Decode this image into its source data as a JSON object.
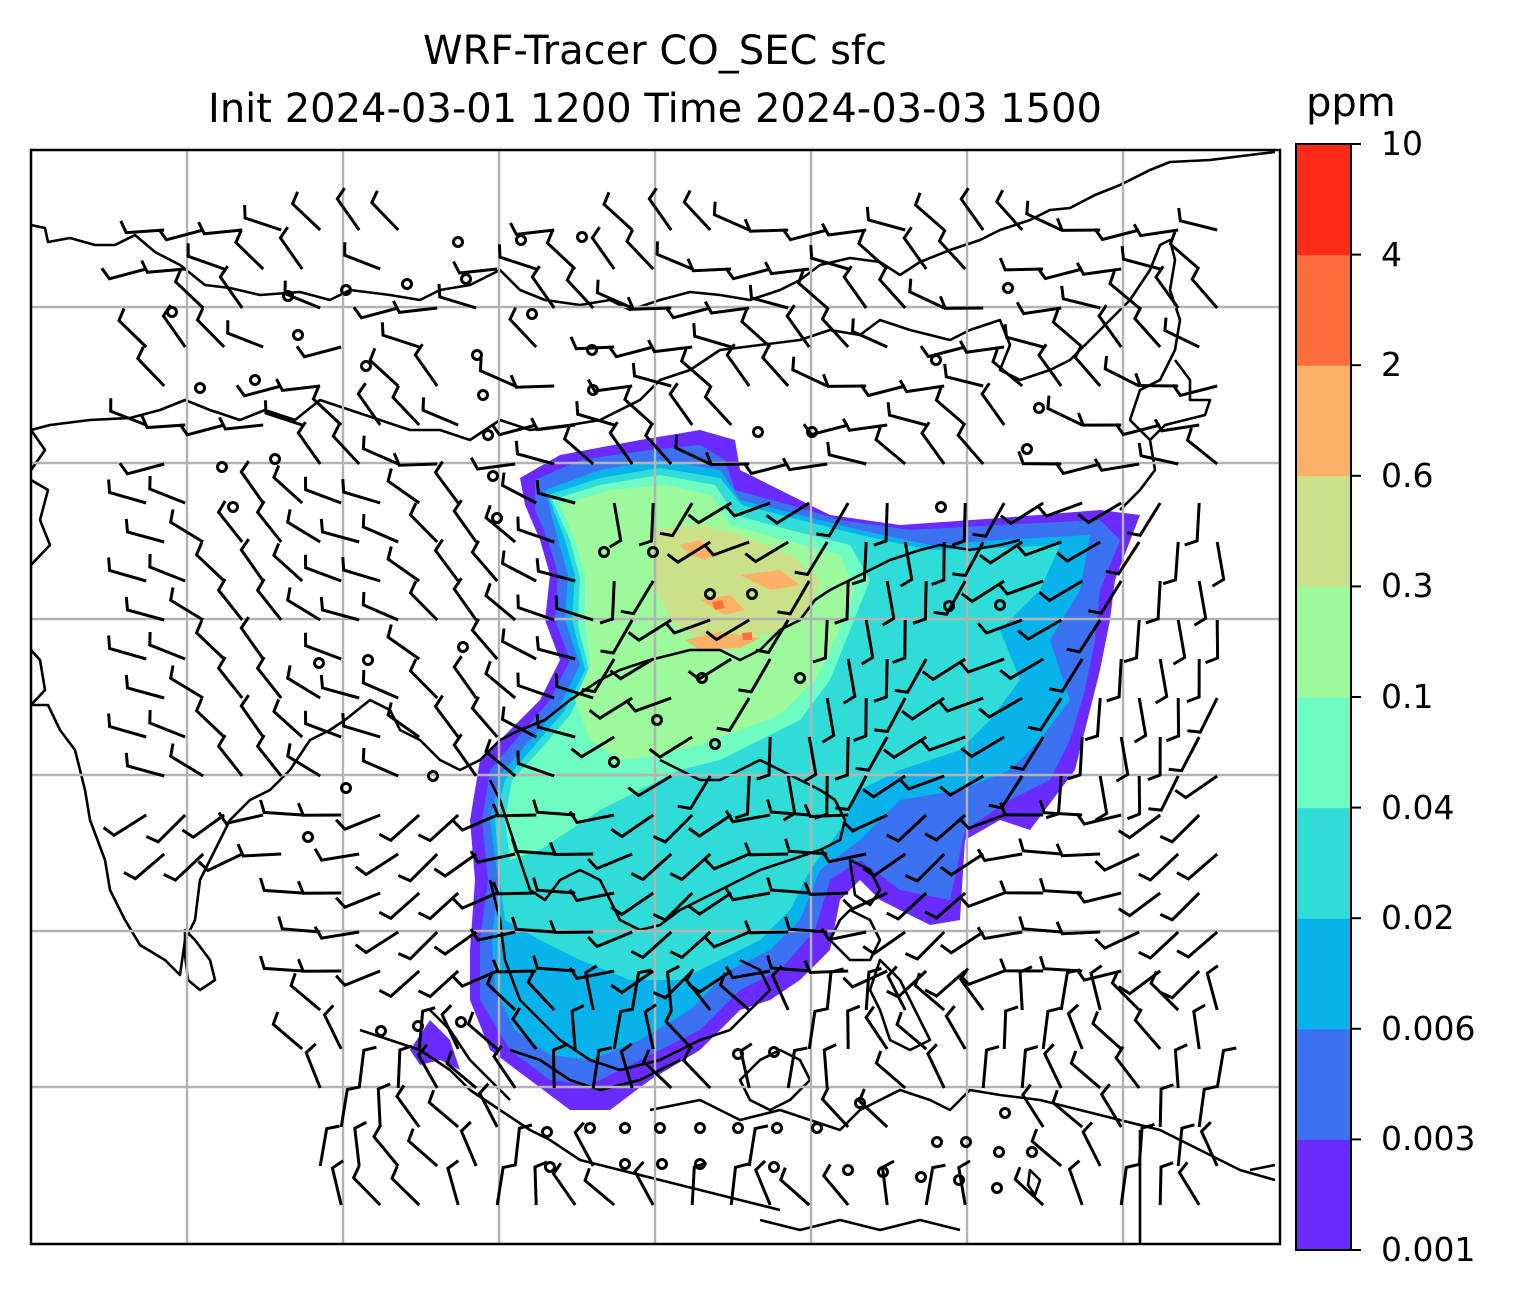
{
  "title": {
    "line1": "WRF-Tracer CO_SEC sfc",
    "line2": "Init 2024-03-01 1200 Time 2024-03-03 1500"
  },
  "colorbar": {
    "unit": "ppm",
    "ticks": [
      "10",
      "4",
      "2",
      "0.6",
      "0.3",
      "0.1",
      "0.04",
      "0.02",
      "0.006",
      "0.003",
      "0.001"
    ],
    "colors": [
      "#6a2bff",
      "#3a72f2",
      "#08b3ec",
      "#30dcd8",
      "#6ffcc3",
      "#9cf99c",
      "#cbe088",
      "#fdb166",
      "#fc6f3a",
      "#ff2a18"
    ]
  },
  "map": {
    "background": "#ffffff",
    "coastline_color": "#000000",
    "grid_color": "#b3b3b3",
    "plume_colors": {
      "lowest": "#6a2bff",
      "low": "#3a72f2",
      "mid": "#30dcd8",
      "midhigh": "#6ffcc3",
      "high": "#9cf99c",
      "higher": "#cbe088",
      "peak": "#fdb166",
      "max": "#fc6f3a"
    }
  }
}
